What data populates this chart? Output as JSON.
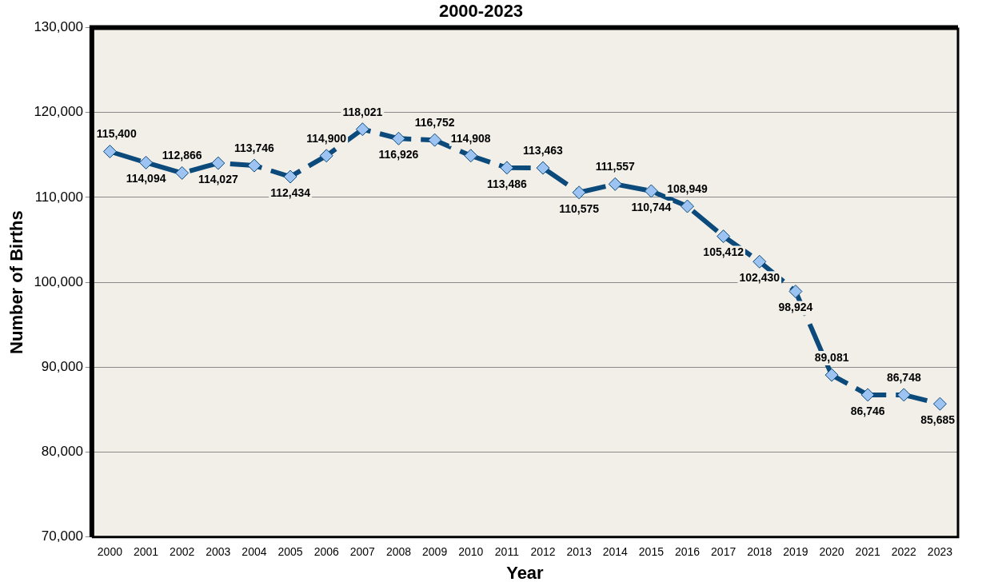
{
  "chart_data": {
    "type": "line",
    "title": "2000-2023",
    "xlabel": "Year",
    "ylabel": "Number of Births",
    "categories": [
      "2000",
      "2001",
      "2002",
      "2003",
      "2004",
      "2005",
      "2006",
      "2007",
      "2008",
      "2009",
      "2010",
      "2011",
      "2012",
      "2013",
      "2014",
      "2015",
      "2016",
      "2017",
      "2018",
      "2019",
      "2020",
      "2021",
      "2022",
      "2023"
    ],
    "series": [
      {
        "color": "#0b4a7a",
        "values": [
          115400,
          114094,
          112866,
          114027,
          113746,
          112434,
          114900,
          118021,
          116926,
          116752,
          114908,
          113486,
          113463,
          110575,
          111557,
          110744,
          108949,
          105412,
          102430,
          98924,
          89081,
          86746,
          86748,
          85685
        ],
        "value_labels": [
          "115,400",
          "114,094",
          "112,866",
          "114,027",
          "113,746",
          "112,434",
          "114,900",
          "118,021",
          "116,926",
          "116,752",
          "114,908",
          "113,486",
          "113,463",
          "110,575",
          "111,557",
          "110,744",
          "108,949",
          "105,412",
          "102,430",
          "98,924",
          "89,081",
          "86,746",
          "86,748",
          "85,685"
        ]
      }
    ],
    "ylim": [
      70000,
      130000
    ],
    "yticks": [
      {
        "value": 70000,
        "label": "70,000"
      },
      {
        "value": 80000,
        "label": "80,000"
      },
      {
        "value": 90000,
        "label": "90,000"
      },
      {
        "value": 100000,
        "label": "100,000"
      },
      {
        "value": 110000,
        "label": "110,000"
      },
      {
        "value": 120000,
        "label": "120,000"
      },
      {
        "value": 130000,
        "label": "130,000"
      }
    ],
    "grid": "y",
    "legend": false,
    "marker": "diamond",
    "line_style": "dashed",
    "data_labels": true
  }
}
